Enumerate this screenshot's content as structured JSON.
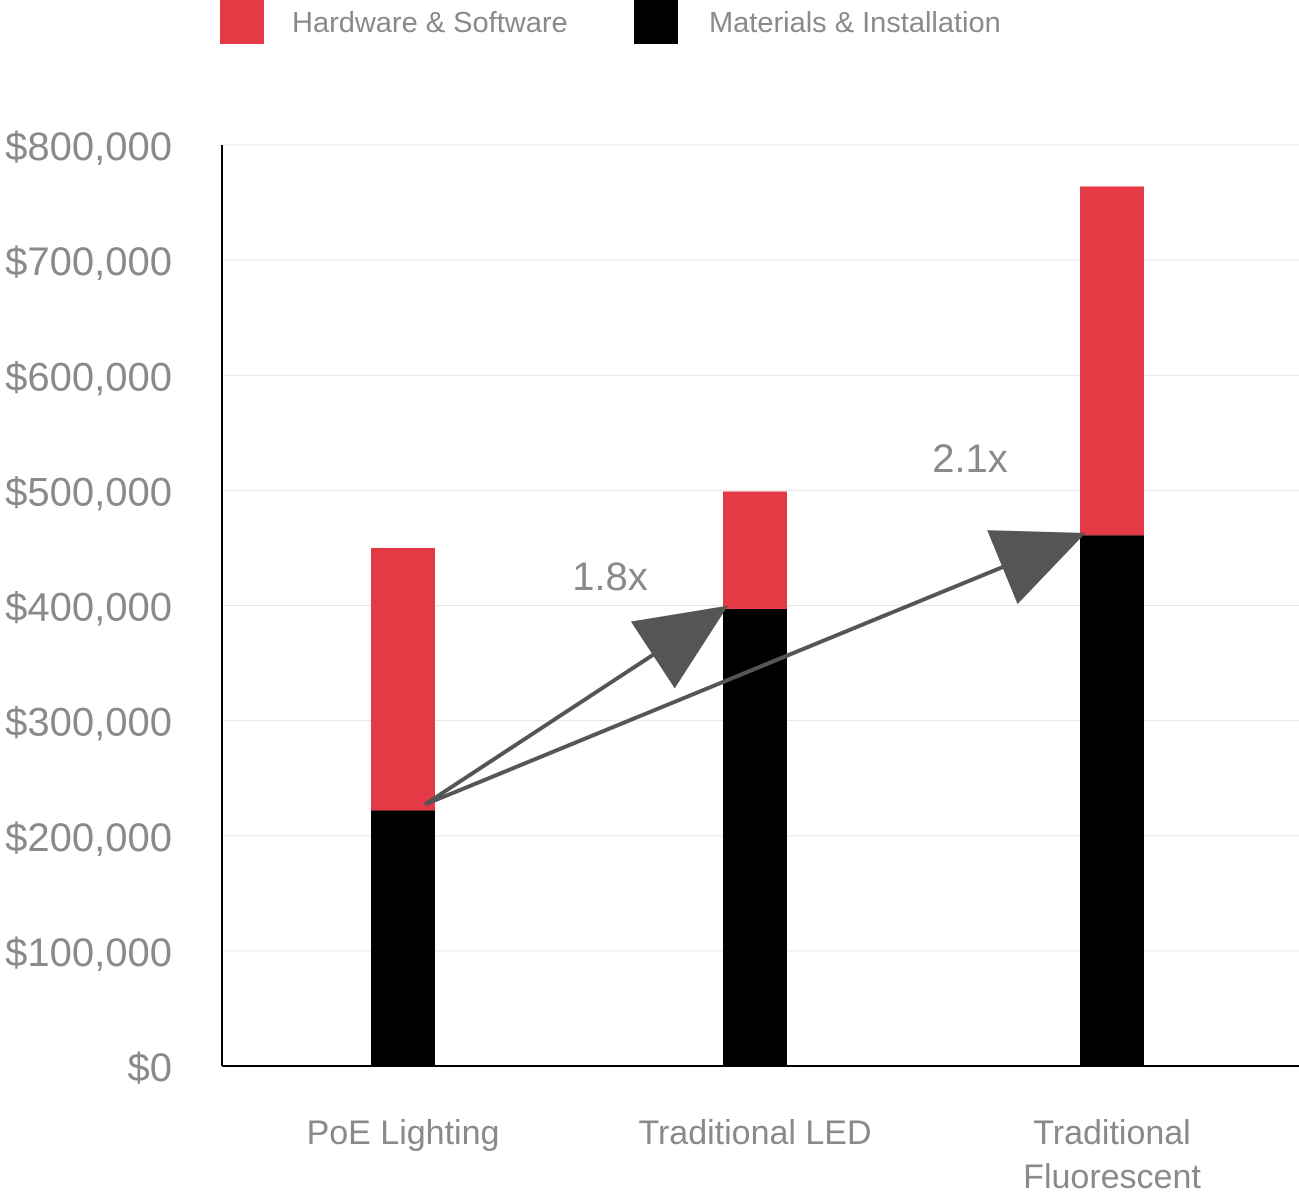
{
  "chart_data": {
    "type": "bar",
    "stacked": true,
    "title": "",
    "xlabel": "",
    "ylabel": "",
    "categories": [
      [
        "PoE Lighting"
      ],
      [
        "Traditional LED"
      ],
      [
        "Traditional",
        "Fluorescent"
      ]
    ],
    "series": [
      {
        "name": "Materials & Installation",
        "color": "#000000",
        "values": [
          222000,
          397000,
          461000
        ]
      },
      {
        "name": "Hardware & Software",
        "color": "#e63946",
        "values": [
          228000,
          102000,
          303000
        ]
      }
    ],
    "legend_order": [
      "Hardware & Software",
      "Materials & Installation"
    ],
    "legend_position": "top",
    "ylim": [
      0,
      800000
    ],
    "yticks": [
      0,
      100000,
      200000,
      300000,
      400000,
      500000,
      600000,
      700000,
      800000
    ],
    "ytick_labels": [
      "$0",
      "$100,000",
      "$200,000",
      "$300,000",
      "$400,000",
      "$500,000",
      "$600,000",
      "$700,000",
      "$800,000"
    ],
    "grid": true,
    "annotations": [
      {
        "text": "1.8x",
        "from": {
          "category": 0,
          "value": 222000
        },
        "to": {
          "category": 1,
          "value": 397000
        }
      },
      {
        "text": "2.1x",
        "from": {
          "category": 0,
          "value": 222000
        },
        "to": {
          "category": 2,
          "value": 461000
        }
      }
    ],
    "colors": {
      "axis": "#000000",
      "grid": "#e6e6e6",
      "text": "#8a8a8a",
      "arrow": "#555555"
    }
  }
}
